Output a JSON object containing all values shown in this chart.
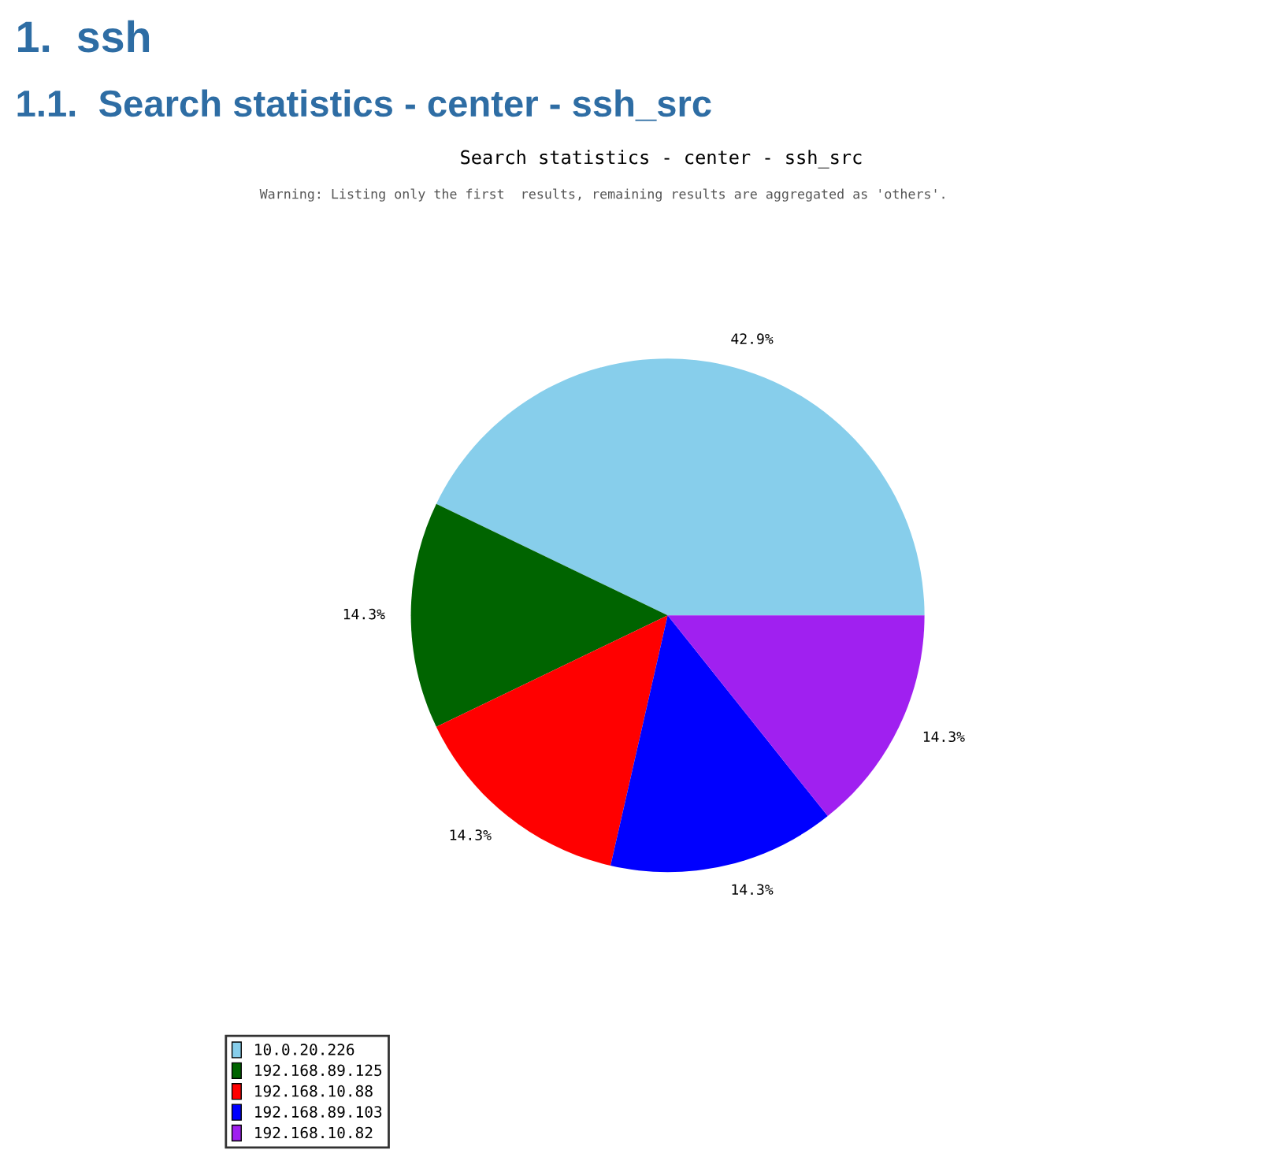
{
  "chart_data": {
    "type": "pie",
    "title": "Search statistics - center - ssh_src",
    "annotations": [
      "1.  ssh",
      "1.1.  Search statistics - center - ssh_src",
      "Warning: Listing only the first  results, remaining results are aggregated as 'others'."
    ],
    "categories": [
      "10.0.20.226",
      "192.168.89.125",
      "192.168.10.88",
      "192.168.89.103",
      "192.168.10.82"
    ],
    "values": [
      42.9,
      14.3,
      14.3,
      14.3,
      14.3
    ],
    "value_labels": [
      "42.9%",
      "14.3%",
      "14.3%",
      "14.3%",
      "14.3%"
    ],
    "colors": [
      "#87ceeb",
      "#006400",
      "#ff0000",
      "#0000ff",
      "#a020f0"
    ],
    "legend": "bottom left"
  }
}
